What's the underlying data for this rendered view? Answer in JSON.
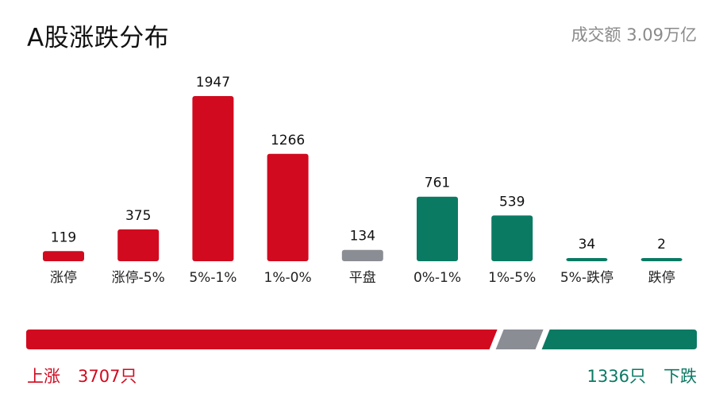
{
  "header": {
    "title": "A股涨跌分布",
    "turnover": "成交额 3.09万亿"
  },
  "colors": {
    "up": "#d10a1f",
    "flat": "#8b8d94",
    "down": "#0a7a63"
  },
  "chart_data": {
    "type": "bar",
    "title": "A股涨跌分布",
    "categories": [
      "涨停",
      "涨停-5%",
      "5%-1%",
      "1%-0%",
      "平盘",
      "0%-1%",
      "1%-5%",
      "5%-跌停",
      "跌停"
    ],
    "values": [
      119,
      375,
      1947,
      1266,
      134,
      761,
      539,
      34,
      2
    ],
    "bar_colors": [
      "up",
      "up",
      "up",
      "up",
      "flat",
      "down",
      "down",
      "down",
      "down"
    ]
  },
  "ratio_bar": {
    "up_count": 3707,
    "flat_count": 134,
    "down_count": 1336
  },
  "summary": {
    "up_label": "上涨",
    "up_count_text": "3707只",
    "down_count_text": "1336只",
    "down_label": "下跌"
  }
}
